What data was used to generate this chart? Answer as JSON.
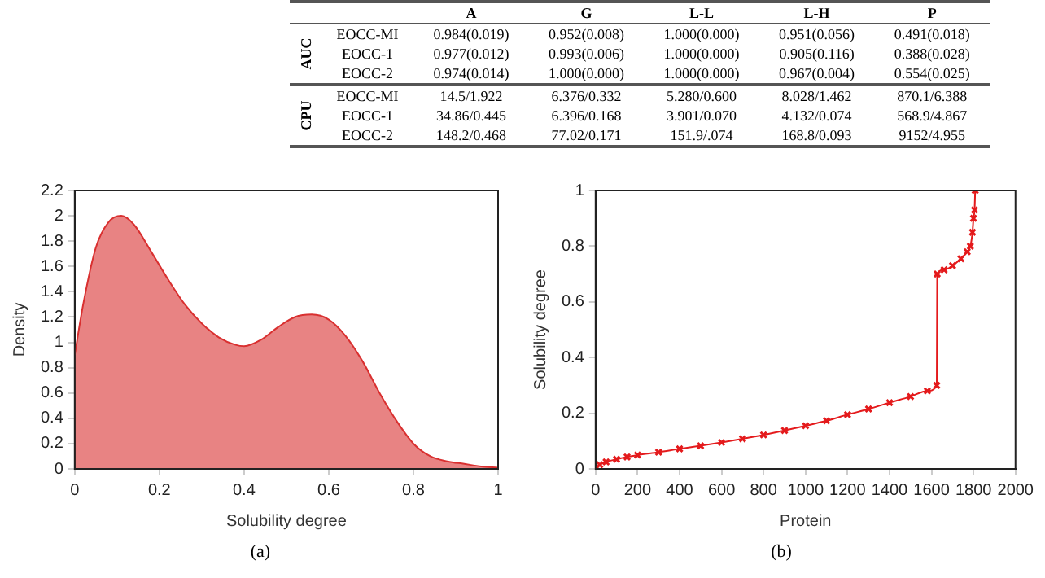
{
  "chart_data": [
    {
      "type": "other",
      "categories": [
        "A",
        "G",
        "L-L",
        "L-H",
        "P"
      ],
      "y_categories": [
        "EOCC-MI",
        "EOCC-1",
        "EOCC-2",
        "EOCC-MI",
        "EOCC-1",
        "EOCC-2"
      ],
      "annotations": [
        "AUC",
        "CPU"
      ],
      "cell_labels": [
        [
          "0.984(0.019)",
          "0.952(0.008)",
          "1.000(0.000)",
          "0.951(0.056)",
          "0.491(0.018)"
        ],
        [
          "0.977(0.012)",
          "0.993(0.006)",
          "1.000(0.000)",
          "0.905(0.116)",
          "0.388(0.028)"
        ],
        [
          "0.974(0.014)",
          "1.000(0.000)",
          "1.000(0.000)",
          "0.967(0.004)",
          "0.554(0.025)"
        ],
        [
          "14.5/1.922",
          "6.376/0.332",
          "5.280/0.600",
          "8.028/1.462",
          "870.1/6.388"
        ],
        [
          "34.86/0.445",
          "6.396/0.168",
          "3.901/0.070",
          "4.132/0.074",
          "568.9/4.867"
        ],
        [
          "148.2/0.468",
          "77.02/0.171",
          "151.9/.074",
          "168.8/0.093",
          "9152/4.955"
        ]
      ]
    },
    {
      "type": "area",
      "xlabel": "Solubility degree",
      "ylabel": "Density",
      "annotations": [
        "(a)"
      ],
      "grid": false,
      "legend": false,
      "x": [
        0,
        0.02,
        0.05,
        0.08,
        0.11,
        0.14,
        0.18,
        0.22,
        0.26,
        0.3,
        0.34,
        0.38,
        0.4,
        0.44,
        0.48,
        0.52,
        0.56,
        0.6,
        0.64,
        0.68,
        0.72,
        0.76,
        0.8,
        0.84,
        0.88,
        0.92,
        0.96,
        1
      ],
      "series": [
        {
          "color": "#d93030",
          "values": [
            0.9,
            1.3,
            1.75,
            1.95,
            2.0,
            1.93,
            1.72,
            1.5,
            1.3,
            1.15,
            1.04,
            0.98,
            0.97,
            1.02,
            1.12,
            1.2,
            1.22,
            1.18,
            1.05,
            0.85,
            0.6,
            0.38,
            0.2,
            0.1,
            0.06,
            0.04,
            0.02,
            0.01
          ]
        }
      ],
      "xlim": [
        0,
        1
      ],
      "xticks": [
        0,
        0.2,
        0.4,
        0.6,
        0.8,
        1
      ],
      "ylim": [
        0,
        2.2
      ],
      "yticks": [
        0,
        0.2,
        0.4,
        0.6,
        0.8,
        1,
        1.2,
        1.4,
        1.6,
        1.8,
        2,
        2.2
      ]
    },
    {
      "type": "line",
      "xlabel": "Protein",
      "ylabel": "Solubility degree",
      "annotations": [
        "(b)"
      ],
      "grid": false,
      "legend": false,
      "marker": "cross",
      "line_style": "solid",
      "x": [
        0,
        20,
        50,
        100,
        150,
        200,
        300,
        400,
        500,
        600,
        700,
        800,
        900,
        1000,
        1100,
        1200,
        1300,
        1400,
        1500,
        1580,
        1625,
        1627,
        1660,
        1700,
        1740,
        1770,
        1785,
        1795,
        1800,
        1805,
        1808
      ],
      "series": [
        {
          "color": "#e41a1c",
          "values": [
            0,
            0.015,
            0.025,
            0.035,
            0.043,
            0.05,
            0.06,
            0.072,
            0.083,
            0.095,
            0.108,
            0.122,
            0.138,
            0.155,
            0.173,
            0.195,
            0.215,
            0.238,
            0.26,
            0.28,
            0.3,
            0.7,
            0.715,
            0.73,
            0.755,
            0.78,
            0.8,
            0.85,
            0.9,
            0.93,
            1
          ]
        }
      ],
      "xlim": [
        0,
        2000
      ],
      "xticks": [
        0,
        200,
        400,
        600,
        800,
        1000,
        1200,
        1400,
        1600,
        1800,
        2000
      ],
      "ylim": [
        0,
        1
      ],
      "yticks": [
        0,
        0.2,
        0.4,
        0.6,
        0.8,
        1
      ]
    }
  ]
}
